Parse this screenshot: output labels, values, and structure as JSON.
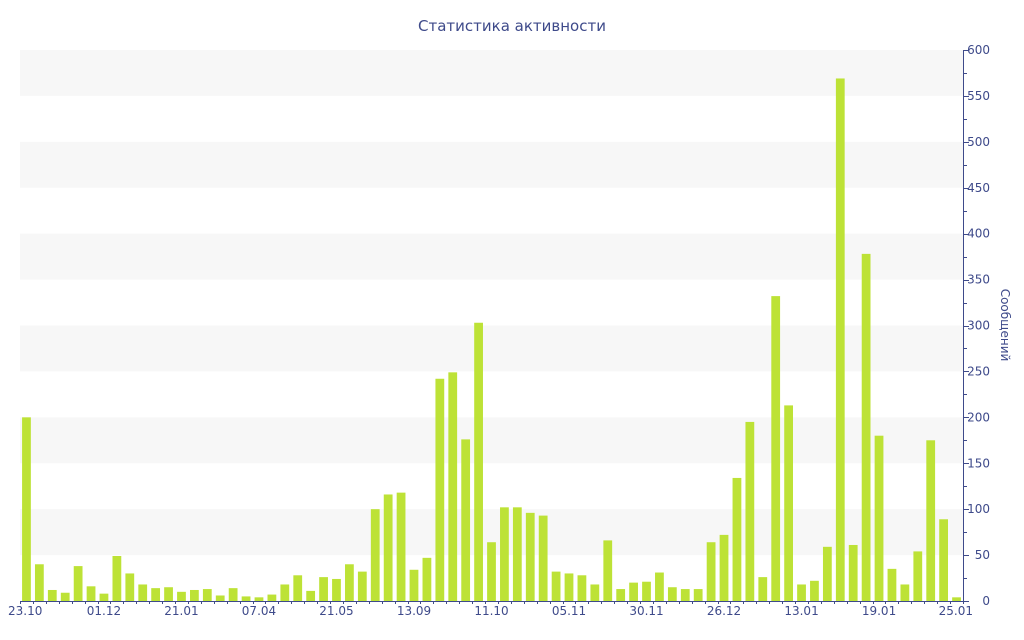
{
  "colors": {
    "bar": "#bde236",
    "band": "#f7f7f7",
    "axis": "#3e4a8a",
    "text": "#3e4a8a"
  },
  "chart_data": {
    "type": "bar",
    "title": "Статистика активности",
    "xlabel": "",
    "ylabel": "Сообщений",
    "ylim": [
      0,
      600
    ],
    "yticks": [
      0,
      50,
      100,
      150,
      200,
      250,
      300,
      350,
      400,
      450,
      500,
      550,
      600
    ],
    "y_axis_position": "right",
    "grid": "alternating horizontal bands",
    "x_tick_labels": [
      {
        "index": 0,
        "label": "23.10"
      },
      {
        "index": 6,
        "label": "01.12"
      },
      {
        "index": 12,
        "label": "21.01"
      },
      {
        "index": 18,
        "label": "07.04"
      },
      {
        "index": 24,
        "label": "21.05"
      },
      {
        "index": 30,
        "label": "13.09"
      },
      {
        "index": 36,
        "label": "11.10"
      },
      {
        "index": 42,
        "label": "05.11"
      },
      {
        "index": 48,
        "label": "30.11"
      },
      {
        "index": 54,
        "label": "26.12"
      },
      {
        "index": 60,
        "label": "13.01"
      },
      {
        "index": 66,
        "label": "19.01"
      },
      {
        "index": 72,
        "label": "25.01"
      }
    ],
    "series": [
      {
        "values": [
          200,
          40,
          12,
          9,
          38,
          16,
          8,
          49,
          30,
          18,
          14,
          15,
          10,
          12,
          13,
          6,
          14,
          5,
          4,
          7,
          18,
          28,
          11,
          26,
          24,
          40,
          32,
          100,
          116,
          118,
          34,
          47,
          242,
          249,
          176,
          303,
          64,
          102,
          102,
          96,
          93,
          32,
          30,
          28,
          18,
          66,
          13,
          20,
          21,
          31,
          15,
          13,
          13,
          64,
          72,
          134,
          195,
          26,
          332,
          213,
          18,
          22,
          59,
          569,
          61,
          378,
          180,
          35,
          18,
          54,
          175,
          89,
          4
        ]
      }
    ]
  }
}
